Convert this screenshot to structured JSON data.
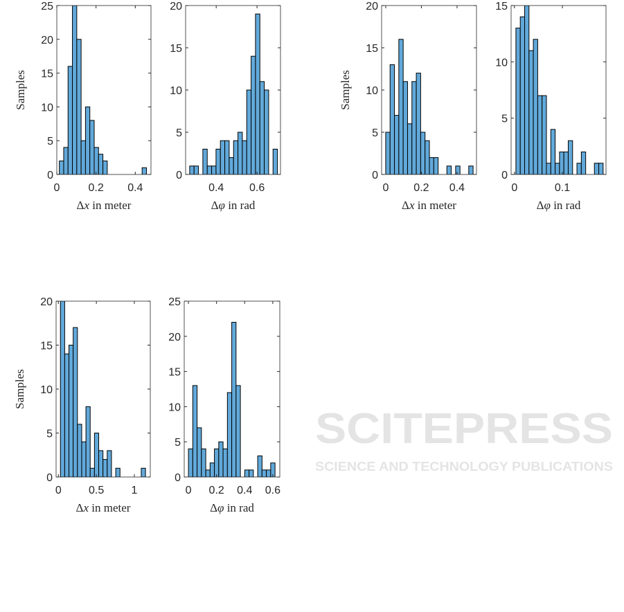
{
  "watermark": {
    "main": "SCITEPRESS",
    "sub": "SCIENCE AND TECHNOLOGY PUBLICATIONS"
  },
  "chart_data": [
    {
      "type": "bar",
      "subtype": "histogram",
      "ylabel": "Samples",
      "xlabel": "Δx in meter",
      "bin_start": 0.013,
      "bin_width": 0.0222,
      "values": [
        2,
        4,
        16,
        25,
        20,
        5,
        10,
        8,
        4,
        3,
        2,
        0,
        0,
        0,
        0,
        0,
        0,
        0,
        0,
        1
      ],
      "xlim": [
        0,
        0.48
      ],
      "ylim": [
        0,
        25
      ],
      "xticks": [
        0,
        0.2,
        0.4
      ],
      "yticks": [
        0,
        5,
        10,
        15,
        20,
        25
      ],
      "bar_color": "#62a9da"
    },
    {
      "type": "bar",
      "subtype": "histogram",
      "ylabel": "",
      "xlabel": "Δφ in rad",
      "bin_start": 0.27,
      "bin_width": 0.0215,
      "values": [
        1,
        1,
        0,
        3,
        1,
        1,
        3,
        4,
        4,
        2,
        4,
        5,
        4,
        10,
        14,
        19,
        11,
        10,
        0,
        3
      ],
      "xlim": [
        0.25,
        0.715
      ],
      "ylim": [
        0,
        20
      ],
      "xticks": [
        0.4,
        0.6
      ],
      "yticks": [
        0,
        5,
        10,
        15,
        20
      ],
      "bar_color": "#62a9da"
    },
    {
      "type": "bar",
      "subtype": "histogram",
      "ylabel": "Samples",
      "xlabel": "Δx in meter",
      "bin_start": 0.0,
      "bin_width": 0.0245,
      "values": [
        5,
        13,
        7,
        16,
        11,
        6,
        11,
        12,
        5,
        4,
        2,
        2,
        0,
        0,
        1,
        0,
        1,
        0,
        0,
        1
      ],
      "xlim": [
        -0.023,
        0.509
      ],
      "ylim": [
        0,
        20
      ],
      "xticks": [
        0,
        0.2,
        0.4
      ],
      "yticks": [
        0,
        5,
        10,
        15,
        20
      ],
      "bar_color": "#62a9da"
    },
    {
      "type": "bar",
      "subtype": "histogram",
      "ylabel": "",
      "xlabel": "Δφ in rad",
      "bin_start": 0.003,
      "bin_width": 0.0091,
      "values": [
        13,
        14,
        15,
        11,
        12,
        7,
        7,
        1,
        4,
        1,
        2,
        2,
        3,
        0,
        1,
        2,
        0,
        0,
        1,
        1
      ],
      "xlim": [
        -0.007,
        0.191
      ],
      "ylim": [
        0,
        15
      ],
      "xticks": [
        0,
        0.1
      ],
      "yticks": [
        0,
        5,
        10,
        15
      ],
      "bar_color": "#62a9da"
    },
    {
      "type": "bar",
      "subtype": "histogram",
      "ylabel": "Samples",
      "xlabel": "Δx in meter",
      "bin_start": 0.027,
      "bin_width": 0.056,
      "values": [
        20,
        14,
        15,
        17,
        6,
        4,
        8,
        1,
        5,
        3,
        2,
        3,
        0,
        1,
        0,
        0,
        0,
        0,
        0,
        1
      ],
      "xlim": [
        -0.03,
        1.21
      ],
      "ylim": [
        0,
        20
      ],
      "xticks": [
        0,
        0.5,
        1
      ],
      "yticks": [
        0,
        5,
        10,
        15,
        20
      ],
      "bar_color": "#62a9da"
    },
    {
      "type": "bar",
      "subtype": "histogram",
      "ylabel": "",
      "xlabel": "Δφ in rad",
      "bin_start": 0.0,
      "bin_width": 0.0308,
      "values": [
        4,
        13,
        7,
        4,
        1,
        2,
        4,
        5,
        4,
        12,
        22,
        13,
        0,
        1,
        1,
        0,
        3,
        1,
        1,
        2
      ],
      "xlim": [
        -0.03,
        0.65
      ],
      "ylim": [
        0,
        25
      ],
      "xticks": [
        0,
        0.2,
        0.4,
        0.6
      ],
      "yticks": [
        0,
        5,
        10,
        15,
        20,
        25
      ],
      "bar_color": "#62a9da"
    }
  ]
}
